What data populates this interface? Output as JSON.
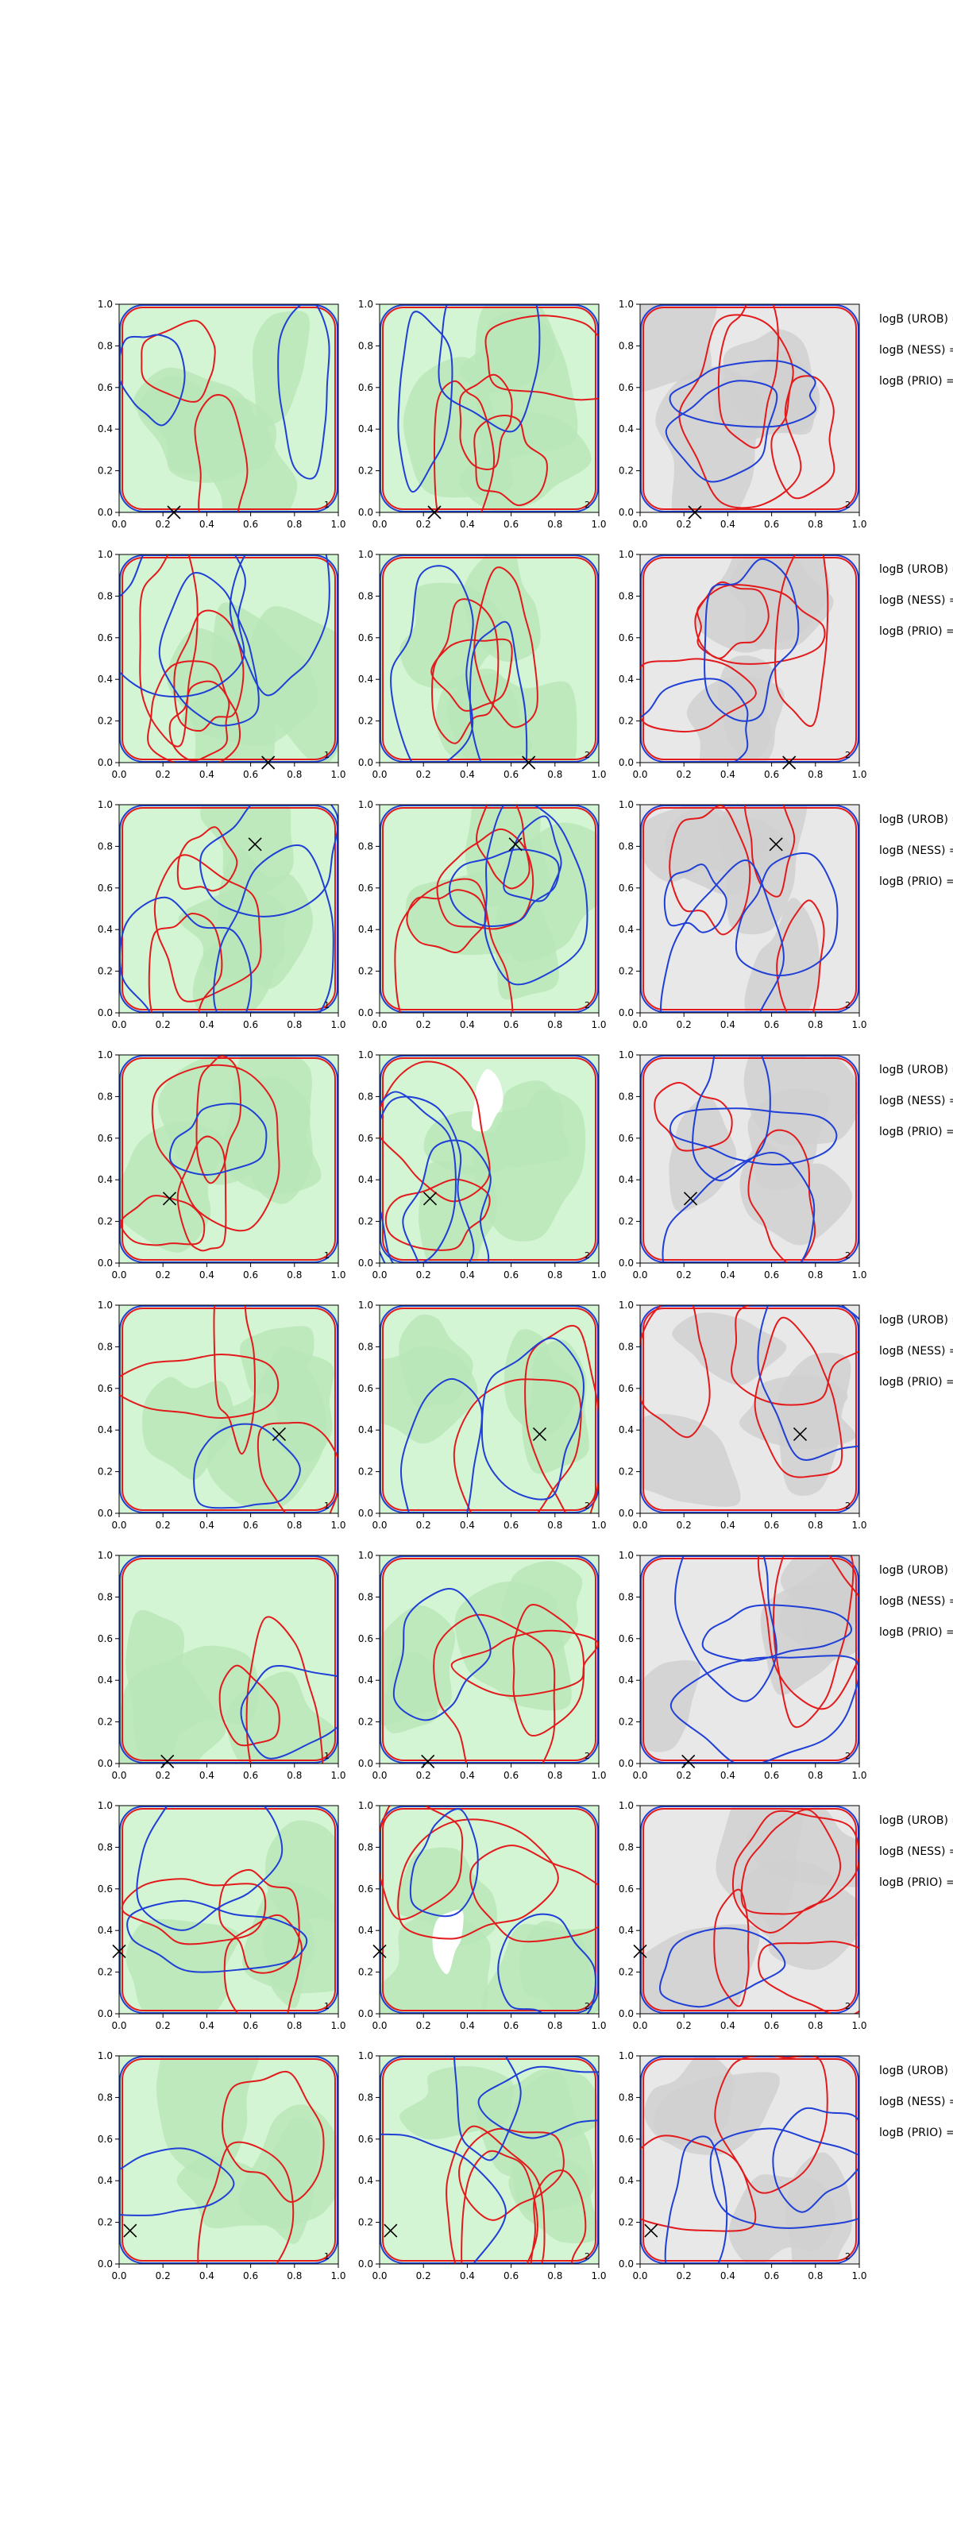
{
  "figure": {
    "stat_labels": [
      "logB (UROB) =",
      "logB (NESS) =",
      "logB (PRIO) ="
    ]
  },
  "chart_data": {
    "type": "contour-grid",
    "rows": 8,
    "columns": 3,
    "xlim": [
      0,
      1
    ],
    "ylim": [
      0,
      1
    ],
    "xticks": [
      "0.0",
      "0.2",
      "0.4",
      "0.6",
      "0.8",
      "1.0"
    ],
    "yticks": [
      "0.0",
      "0.2",
      "0.4",
      "0.6",
      "0.8",
      "1.0"
    ],
    "panel_numbers": [
      "1",
      "2",
      "2"
    ],
    "colors": {
      "red_contour": "#e31a1c",
      "blue_contour": "#1f3fd6",
      "green_fill": "#d3f5d3",
      "green_dark_fill": "#b9e6b9",
      "gray_fill": "#e8e8e8",
      "gray_dark_fill": "#d0d0d0",
      "marker": "#000000"
    },
    "panel_backgrounds": [
      "green",
      "green",
      "gray"
    ],
    "markers": [
      {
        "row": 1,
        "x": 0.25,
        "y": 0.0
      },
      {
        "row": 2,
        "x": 0.68,
        "y": 0.0
      },
      {
        "row": 3,
        "x": 0.62,
        "y": 0.81
      },
      {
        "row": 4,
        "x": 0.23,
        "y": 0.31
      },
      {
        "row": 5,
        "x": 0.73,
        "y": 0.38
      },
      {
        "row": 6,
        "x": 0.22,
        "y": 0.01
      },
      {
        "row": 7,
        "x": 0.0,
        "y": 0.3
      },
      {
        "row": 8,
        "x": 0.05,
        "y": 0.16
      }
    ]
  }
}
